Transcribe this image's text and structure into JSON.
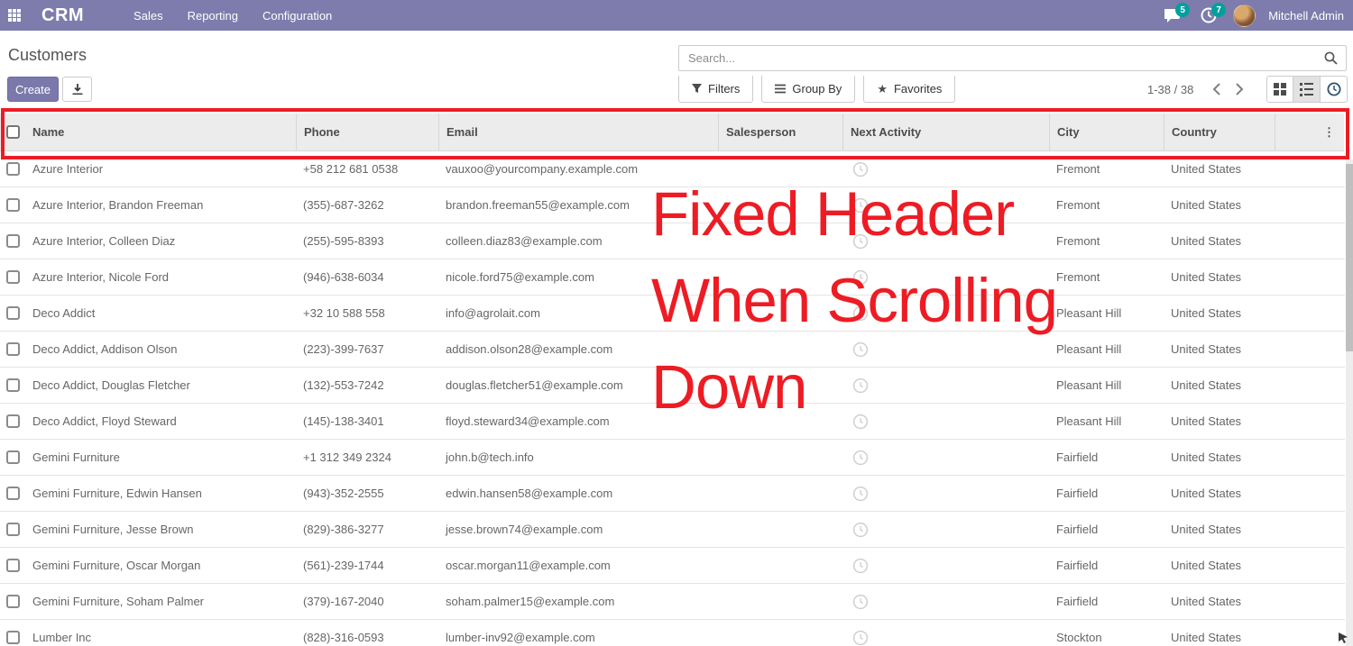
{
  "navbar": {
    "app_title": "CRM",
    "menus": [
      "Sales",
      "Reporting",
      "Configuration"
    ],
    "message_badge": "5",
    "activity_badge": "7",
    "user_name": "Mitchell Admin"
  },
  "breadcrumb": {
    "title": "Customers"
  },
  "search": {
    "placeholder": "Search..."
  },
  "toolbar": {
    "create_label": "Create",
    "filters_label": "Filters",
    "group_by_label": "Group By",
    "favorites_label": "Favorites",
    "pager_text": "1-38 / 38"
  },
  "icons": {
    "apps": "grid-3x3",
    "messages": "chat-bubble",
    "activities": "clock",
    "export": "download-tray",
    "search": "magnifier",
    "filters": "funnel",
    "group_by": "hamburger",
    "favorites": "star",
    "kanban_view": "four-squares",
    "list_view": "list-bullets",
    "activity_view": "clock",
    "header_options": "vertical-ellipsis",
    "next_activity": "clock-outline"
  },
  "annotation": {
    "line1": "Fixed Header",
    "line2": "When Scrolling",
    "line3": "Down",
    "color": "#ed1c24"
  },
  "colors": {
    "navbar_purple": "#7d7cac",
    "accent_purple": "#7b79ab",
    "badge_teal": "#00a09d",
    "annotation_red": "#ed1c24",
    "header_bg": "#ececec"
  },
  "table": {
    "columns": [
      "Name",
      "Phone",
      "Email",
      "Salesperson",
      "Next Activity",
      "City",
      "Country"
    ],
    "rows": [
      {
        "name": "Azure Interior",
        "phone": "+58 212 681 0538",
        "email": "vauxoo@yourcompany.example.com",
        "salesperson": "",
        "city": "Fremont",
        "country": "United States"
      },
      {
        "name": "Azure Interior, Brandon Freeman",
        "phone": "(355)-687-3262",
        "email": "brandon.freeman55@example.com",
        "salesperson": "",
        "city": "Fremont",
        "country": "United States"
      },
      {
        "name": "Azure Interior, Colleen Diaz",
        "phone": "(255)-595-8393",
        "email": "colleen.diaz83@example.com",
        "salesperson": "",
        "city": "Fremont",
        "country": "United States"
      },
      {
        "name": "Azure Interior, Nicole Ford",
        "phone": "(946)-638-6034",
        "email": "nicole.ford75@example.com",
        "salesperson": "",
        "city": "Fremont",
        "country": "United States"
      },
      {
        "name": "Deco Addict",
        "phone": "+32 10 588 558",
        "email": "info@agrolait.com",
        "salesperson": "",
        "city": "Pleasant Hill",
        "country": "United States"
      },
      {
        "name": "Deco Addict, Addison Olson",
        "phone": "(223)-399-7637",
        "email": "addison.olson28@example.com",
        "salesperson": "",
        "city": "Pleasant Hill",
        "country": "United States"
      },
      {
        "name": "Deco Addict, Douglas Fletcher",
        "phone": "(132)-553-7242",
        "email": "douglas.fletcher51@example.com",
        "salesperson": "",
        "city": "Pleasant Hill",
        "country": "United States"
      },
      {
        "name": "Deco Addict, Floyd Steward",
        "phone": "(145)-138-3401",
        "email": "floyd.steward34@example.com",
        "salesperson": "",
        "city": "Pleasant Hill",
        "country": "United States"
      },
      {
        "name": "Gemini Furniture",
        "phone": "+1 312 349 2324",
        "email": "john.b@tech.info",
        "salesperson": "",
        "city": "Fairfield",
        "country": "United States"
      },
      {
        "name": "Gemini Furniture, Edwin Hansen",
        "phone": "(943)-352-2555",
        "email": "edwin.hansen58@example.com",
        "salesperson": "",
        "city": "Fairfield",
        "country": "United States"
      },
      {
        "name": "Gemini Furniture, Jesse Brown",
        "phone": "(829)-386-3277",
        "email": "jesse.brown74@example.com",
        "salesperson": "",
        "city": "Fairfield",
        "country": "United States"
      },
      {
        "name": "Gemini Furniture, Oscar Morgan",
        "phone": "(561)-239-1744",
        "email": "oscar.morgan11@example.com",
        "salesperson": "",
        "city": "Fairfield",
        "country": "United States"
      },
      {
        "name": "Gemini Furniture, Soham Palmer",
        "phone": "(379)-167-2040",
        "email": "soham.palmer15@example.com",
        "salesperson": "",
        "city": "Fairfield",
        "country": "United States"
      },
      {
        "name": "Lumber Inc",
        "phone": "(828)-316-0593",
        "email": "lumber-inv92@example.com",
        "salesperson": "",
        "city": "Stockton",
        "country": "United States"
      }
    ]
  }
}
